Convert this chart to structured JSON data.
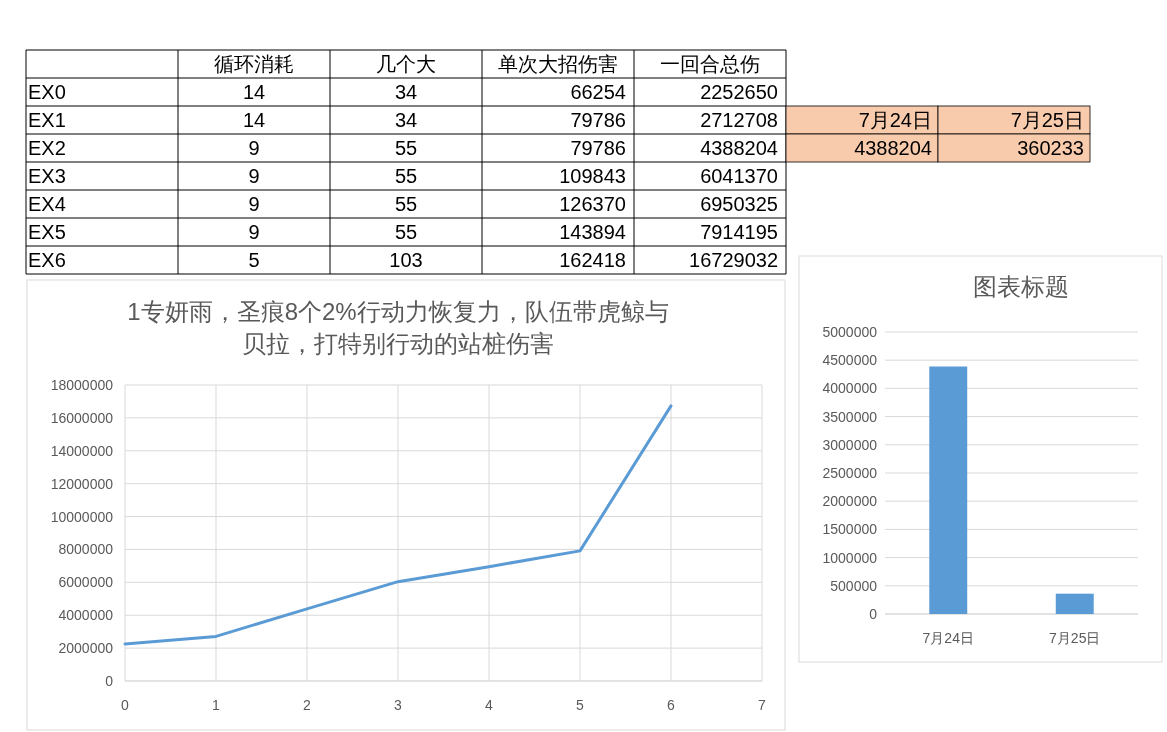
{
  "chart_data": [
    {
      "type": "heatmap",
      "data_labels": true,
      "categories": [
        "循环消耗",
        "几个大",
        "单次大招伤害",
        "一回合总伤"
      ],
      "y_categories": [
        "EX0",
        "EX1",
        "EX2",
        "EX3",
        "EX4",
        "EX5",
        "EX6"
      ],
      "cells": [
        [
          14,
          34,
          66254,
          2252650
        ],
        [
          14,
          34,
          79786,
          2712708
        ],
        [
          9,
          55,
          79786,
          4388204
        ],
        [
          9,
          55,
          109843,
          6041370
        ],
        [
          9,
          55,
          126370,
          6950325
        ],
        [
          9,
          55,
          143894,
          7914195
        ],
        [
          5,
          103,
          162418,
          16729032
        ]
      ]
    },
    {
      "type": "other",
      "annotations": [
        "7月24日",
        "7月25日",
        "4388204",
        "360233"
      ],
      "color": "#f8cbad"
    },
    {
      "type": "line",
      "title": "1专妍雨，圣痕8个2%行动力恢复力，队伍带虎鲸与贝拉，打特别行动的站桩伤害",
      "x": [
        0,
        1,
        2,
        3,
        4,
        5,
        6
      ],
      "series": [
        {
          "color": "#5b9bd5",
          "values": [
            2252650,
            2712708,
            4388204,
            6041370,
            6950325,
            7914195,
            16729032
          ]
        }
      ],
      "xlim": [
        0,
        7
      ],
      "xticks": [
        0,
        1,
        2,
        3,
        4,
        5,
        6,
        7
      ],
      "ylim": [
        0,
        18000000
      ],
      "yticks": [
        0,
        2000000,
        4000000,
        6000000,
        8000000,
        10000000,
        12000000,
        14000000,
        16000000,
        18000000
      ],
      "grid": true,
      "marker": "none",
      "line_style": "solid"
    },
    {
      "type": "bar",
      "title": "图表标题",
      "categories": [
        "7月24日",
        "7月25日"
      ],
      "values": [
        4388204,
        360233
      ],
      "color": "#5b9bd5",
      "ylim": [
        0,
        5000000
      ],
      "yticks": [
        0,
        500000,
        1000000,
        1500000,
        2000000,
        2500000,
        3000000,
        3500000,
        4000000,
        4500000,
        5000000
      ],
      "grid": "y"
    }
  ]
}
